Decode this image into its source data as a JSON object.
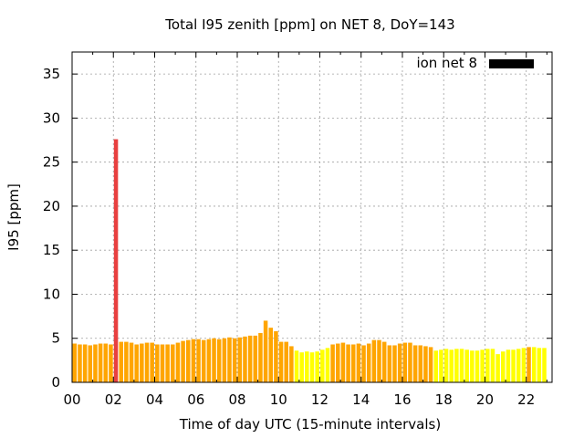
{
  "chart_data": {
    "type": "bar",
    "title": "Total I95 zenith [ppm] on NET 8, DoY=143",
    "xlabel": "Time of day UTC (15-minute intervals)",
    "ylabel": "I95 [ppm]",
    "ylim": [
      0,
      37.5
    ],
    "xlim": [
      0,
      23.25
    ],
    "yticks": [
      0,
      5,
      10,
      15,
      20,
      25,
      30,
      35
    ],
    "xticks": [
      0,
      2,
      4,
      6,
      8,
      10,
      12,
      14,
      16,
      18,
      20,
      22
    ],
    "xtick_labels": [
      "00",
      "02",
      "04",
      "06",
      "08",
      "10",
      "12",
      "14",
      "16",
      "18",
      "20",
      "22"
    ],
    "grid": true,
    "legend": {
      "position": "top-right",
      "label": "ion net 8",
      "color": "#000000"
    },
    "bar_interval_hours": 0.25,
    "series": [
      {
        "name": "ion net 8",
        "x": [
          0.0,
          0.25,
          0.5,
          0.75,
          1.0,
          1.25,
          1.5,
          1.75,
          2.0,
          2.25,
          2.5,
          2.75,
          3.0,
          3.25,
          3.5,
          3.75,
          4.0,
          4.25,
          4.5,
          4.75,
          5.0,
          5.25,
          5.5,
          5.75,
          6.0,
          6.25,
          6.5,
          6.75,
          7.0,
          7.25,
          7.5,
          7.75,
          8.0,
          8.25,
          8.5,
          8.75,
          9.0,
          9.25,
          9.5,
          9.75,
          10.0,
          10.25,
          10.5,
          10.75,
          11.0,
          11.25,
          11.5,
          11.75,
          12.0,
          12.25,
          12.5,
          12.75,
          13.0,
          13.25,
          13.5,
          13.75,
          14.0,
          14.25,
          14.5,
          14.75,
          15.0,
          15.25,
          15.5,
          15.75,
          16.0,
          16.25,
          16.5,
          16.75,
          17.0,
          17.25,
          17.5,
          17.75,
          18.0,
          18.25,
          18.5,
          18.75,
          19.0,
          19.25,
          19.5,
          19.75,
          20.0,
          20.25,
          20.5,
          20.75,
          21.0,
          21.25,
          21.5,
          21.75,
          22.0,
          22.25,
          22.5,
          22.75
        ],
        "values": [
          4.4,
          4.3,
          4.3,
          4.2,
          4.3,
          4.4,
          4.4,
          4.3,
          27.6,
          4.6,
          4.6,
          4.5,
          4.3,
          4.4,
          4.5,
          4.5,
          4.3,
          4.3,
          4.3,
          4.3,
          4.5,
          4.7,
          4.8,
          4.9,
          4.9,
          4.8,
          4.9,
          5.0,
          4.9,
          5.0,
          5.1,
          5.0,
          5.1,
          5.2,
          5.3,
          5.3,
          5.6,
          7.0,
          6.2,
          5.8,
          4.6,
          4.6,
          4.1,
          3.6,
          3.4,
          3.5,
          3.4,
          3.5,
          3.7,
          3.9,
          4.3,
          4.4,
          4.5,
          4.3,
          4.3,
          4.4,
          4.2,
          4.4,
          4.8,
          4.8,
          4.6,
          4.2,
          4.2,
          4.4,
          4.5,
          4.5,
          4.2,
          4.2,
          4.1,
          4.0,
          3.6,
          3.7,
          3.8,
          3.7,
          3.8,
          3.8,
          3.7,
          3.6,
          3.6,
          3.7,
          3.8,
          3.8,
          3.2,
          3.5,
          3.7,
          3.7,
          3.8,
          3.9,
          4.0,
          4.0,
          3.9,
          3.9
        ],
        "colors": [
          "#ffa500",
          "#ffa500",
          "#ffa500",
          "#ffa500",
          "#ffa500",
          "#ffa500",
          "#ffa500",
          "#ffa500",
          "#e84040",
          "#ffa500",
          "#ffa500",
          "#ffa500",
          "#ffa500",
          "#ffa500",
          "#ffa500",
          "#ffa500",
          "#ffa500",
          "#ffa500",
          "#ffa500",
          "#ffa500",
          "#ffa500",
          "#ffa500",
          "#ffa500",
          "#ffa500",
          "#ffa500",
          "#ffa500",
          "#ffa500",
          "#ffa500",
          "#ffa500",
          "#ffa500",
          "#ffa500",
          "#ffa500",
          "#ffa500",
          "#ffa500",
          "#ffa500",
          "#ffa500",
          "#ffa500",
          "#ffa500",
          "#ffa500",
          "#ffa500",
          "#ffa500",
          "#ffa500",
          "#ffa500",
          "#ffff00",
          "#ffff00",
          "#ffff00",
          "#ffff00",
          "#ffff00",
          "#ffff00",
          "#ffff00",
          "#ffa500",
          "#ffa500",
          "#ffa500",
          "#ffa500",
          "#ffa500",
          "#ffa500",
          "#ffa500",
          "#ffa500",
          "#ffa500",
          "#ffa500",
          "#ffa500",
          "#ffa500",
          "#ffa500",
          "#ffa500",
          "#ffa500",
          "#ffa500",
          "#ffa500",
          "#ffa500",
          "#ffa500",
          "#ffa500",
          "#ffff00",
          "#ffff00",
          "#ffff00",
          "#ffff00",
          "#ffff00",
          "#ffff00",
          "#ffff00",
          "#ffff00",
          "#ffff00",
          "#ffff00",
          "#ffff00",
          "#ffff00",
          "#ffff00",
          "#ffff00",
          "#ffff00",
          "#ffff00",
          "#ffff00",
          "#ffff00",
          "#ffa500",
          "#ffff00",
          "#ffff00",
          "#ffff00"
        ]
      }
    ]
  }
}
